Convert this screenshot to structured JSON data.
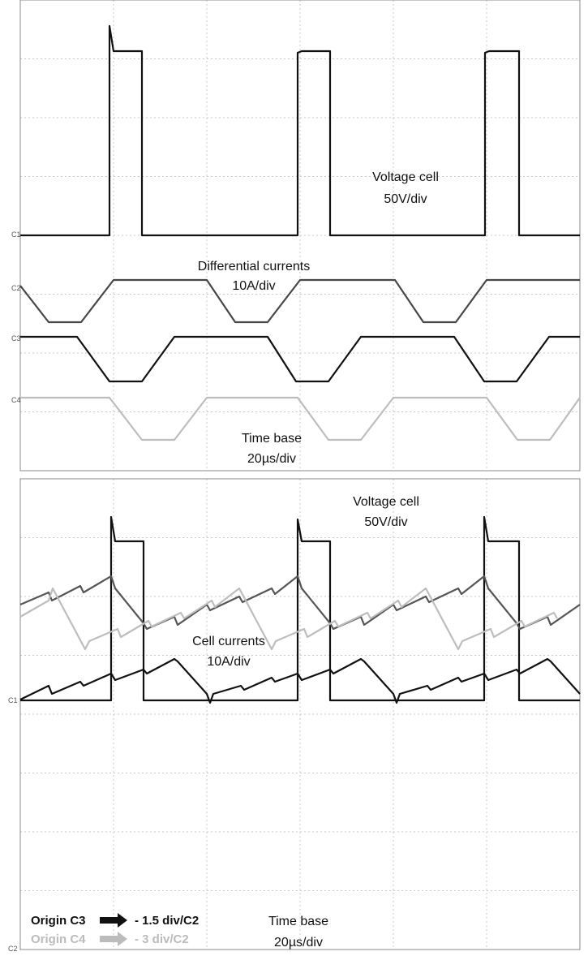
{
  "panel_top": {
    "voltage_label": "Voltage cell",
    "voltage_scale": "50V/div",
    "current_label": "Differential currents",
    "current_scale": "10A/div",
    "time_label": "Time base",
    "time_scale": "20µs/div",
    "channels": [
      "C1",
      "C2",
      "C3",
      "C4"
    ]
  },
  "panel_bottom": {
    "voltage_label": "Voltage cell",
    "voltage_scale": "50V/div",
    "current_label": "Cell currents",
    "current_scale": "10A/div",
    "time_label": "Time base",
    "time_scale": "20µs/div",
    "channels": [
      "C1",
      "C2"
    ],
    "legend": [
      {
        "label": "Origin C3",
        "offset": "- 1.5 div/C2"
      },
      {
        "label": "Origin C4",
        "offset": "- 3 div/C2"
      }
    ]
  }
}
